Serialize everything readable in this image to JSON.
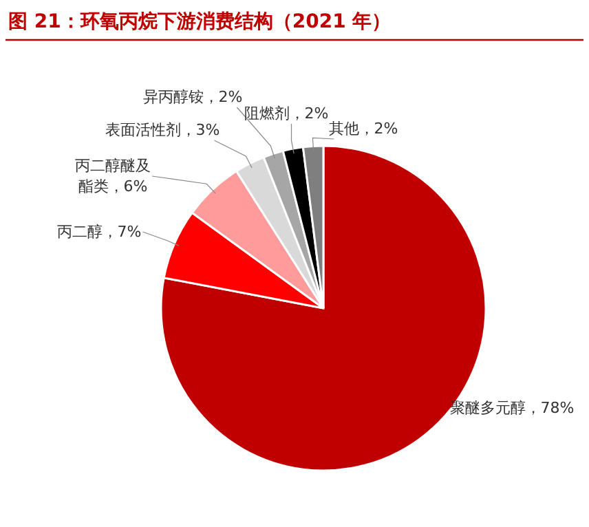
{
  "chart_data": {
    "type": "pie",
    "title": "图 21：环氧丙烷下游消费结构（2021 年）",
    "categories": [
      "聚醚多元醇",
      "丙二醇",
      "丙二醇醚及酯类",
      "表面活性剂",
      "异丙醇铵",
      "阻燃剂",
      "其他"
    ],
    "legend": false,
    "values": [
      78,
      7,
      6,
      3,
      2,
      2,
      2
    ],
    "value_labels": [
      "78%",
      "7%",
      "6%",
      "3%",
      "2%",
      "2%",
      "2%"
    ],
    "colors": [
      "#c00000",
      "#ff0000",
      "#ff9b9b",
      "#d9d9d9",
      "#a6a6a6",
      "#000000",
      "#7f7f7f"
    ]
  }
}
